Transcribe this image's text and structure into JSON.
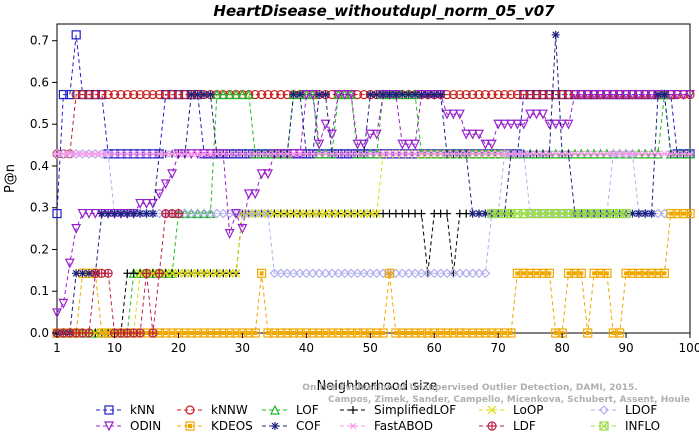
{
  "chart_data": {
    "type": "line",
    "title": "HeartDisease_withoutdupl_norm_05_v07",
    "xlabel": "Neighborhood size",
    "ylabel": "P@n",
    "xlim": [
      1,
      100
    ],
    "ylim": [
      0,
      0.74
    ],
    "x_ticks": [
      1,
      10,
      20,
      30,
      40,
      50,
      60,
      70,
      80,
      90,
      100
    ],
    "y_ticks": [
      0.0,
      0.1,
      0.2,
      0.3,
      0.4,
      0.5,
      0.6,
      0.7
    ],
    "legend_position": "bottom",
    "watermark": [
      "Campos, Zimek, Sander, Campello, Micenkova, Schubert, Assent, Houle",
      "On the Evaluation of Unsupervised Outlier Detection, DAMI, 2015."
    ],
    "series": [
      {
        "name": "kNN",
        "color": "#1f1fcc",
        "marker": "square",
        "points": [
          [
            1,
            0.286
          ],
          [
            2,
            0.571
          ],
          [
            3,
            0.571
          ],
          [
            4,
            0.714
          ],
          [
            5,
            0.571
          ],
          [
            6,
            0.571
          ],
          [
            7,
            0.571
          ],
          [
            8,
            0.571
          ],
          [
            9,
            0.429
          ],
          [
            15,
            0.429
          ],
          [
            16,
            0.429
          ],
          [
            17,
            0.429
          ],
          [
            18,
            0.571
          ],
          [
            19,
            0.571
          ],
          [
            22,
            0.571
          ],
          [
            24,
            0.429
          ],
          [
            60,
            0.429
          ],
          [
            70,
            0.429
          ],
          [
            72,
            0.429
          ],
          [
            74,
            0.571
          ],
          [
            90,
            0.571
          ],
          [
            96,
            0.571
          ],
          [
            98,
            0.429
          ],
          [
            100,
            0.429
          ]
        ]
      },
      {
        "name": "kNNW",
        "color": "#cc1f1f",
        "marker": "circle",
        "points": [
          [
            1,
            0.429
          ],
          [
            2,
            0.429
          ],
          [
            3,
            0.429
          ],
          [
            4,
            0.571
          ],
          [
            100,
            0.571
          ]
        ]
      },
      {
        "name": "LOF",
        "color": "#22bb22",
        "marker": "triangle-up",
        "points": [
          [
            1,
            0.0
          ],
          [
            10,
            0.0
          ],
          [
            12,
            0.0
          ],
          [
            13,
            0.143
          ],
          [
            19,
            0.143
          ],
          [
            20,
            0.286
          ],
          [
            25,
            0.286
          ],
          [
            26,
            0.571
          ],
          [
            30,
            0.571
          ],
          [
            32,
            0.429
          ],
          [
            38,
            0.571
          ],
          [
            42,
            0.429
          ],
          [
            45,
            0.571
          ],
          [
            48,
            0.429
          ],
          [
            52,
            0.571
          ],
          [
            58,
            0.429
          ],
          [
            72,
            0.429
          ],
          [
            95,
            0.429
          ],
          [
            96,
            0.571
          ],
          [
            97,
            0.429
          ],
          [
            100,
            0.429
          ]
        ]
      },
      {
        "name": "SimplifiedLOF",
        "color": "#000000",
        "marker": "plus",
        "points": [
          [
            1,
            0.0
          ],
          [
            9,
            0.0
          ],
          [
            10,
            0.0
          ],
          [
            12,
            0.143
          ],
          [
            16,
            0.143
          ],
          [
            18,
            0.143
          ],
          [
            28,
            0.143
          ],
          [
            30,
            0.286
          ],
          [
            58,
            0.286
          ],
          [
            59,
            0.143
          ],
          [
            60,
            0.286
          ],
          [
            62,
            0.286
          ],
          [
            63,
            0.143
          ],
          [
            64,
            0.286
          ],
          [
            70,
            0.286
          ],
          [
            72,
            0.286
          ]
        ]
      },
      {
        "name": "LoOP",
        "color": "#dddd00",
        "marker": "x",
        "points": [
          [
            1,
            0.0
          ],
          [
            10,
            0.0
          ],
          [
            12,
            0.0
          ],
          [
            14,
            0.143
          ],
          [
            20,
            0.143
          ],
          [
            29,
            0.143
          ],
          [
            30,
            0.286
          ],
          [
            40,
            0.286
          ],
          [
            50,
            0.286
          ],
          [
            52,
            0.429
          ],
          [
            60,
            0.429
          ],
          [
            70,
            0.429
          ],
          [
            72,
            0.429
          ]
        ]
      },
      {
        "name": "LDOF",
        "color": "#b0b0ee",
        "marker": "diamond",
        "points": [
          [
            1,
            0.429
          ],
          [
            4,
            0.429
          ],
          [
            6,
            0.429
          ],
          [
            8,
            0.429
          ],
          [
            10,
            0.286
          ],
          [
            20,
            0.286
          ],
          [
            30,
            0.286
          ],
          [
            35,
            0.143
          ],
          [
            45,
            0.143
          ],
          [
            55,
            0.143
          ],
          [
            65,
            0.143
          ],
          [
            68,
            0.143
          ],
          [
            69,
            0.286
          ],
          [
            71,
            0.429
          ],
          [
            75,
            0.286
          ],
          [
            85,
            0.286
          ],
          [
            88,
            0.429
          ],
          [
            92,
            0.286
          ],
          [
            96,
            0.286
          ]
        ]
      },
      {
        "name": "ODIN",
        "color": "#9922cc",
        "marker": "triangle-down",
        "points": [
          [
            1,
            0.048
          ],
          [
            2,
            0.071
          ],
          [
            3,
            0.167
          ],
          [
            4,
            0.25
          ],
          [
            5,
            0.286
          ],
          [
            10,
            0.286
          ],
          [
            13,
            0.286
          ],
          [
            14,
            0.31
          ],
          [
            16,
            0.31
          ],
          [
            17,
            0.333
          ],
          [
            18,
            0.357
          ],
          [
            19,
            0.381
          ],
          [
            20,
            0.429
          ],
          [
            25,
            0.429
          ],
          [
            28,
            0.238
          ],
          [
            29,
            0.286
          ],
          [
            30,
            0.25
          ],
          [
            31,
            0.333
          ],
          [
            33,
            0.381
          ],
          [
            35,
            0.429
          ],
          [
            38,
            0.429
          ],
          [
            40,
            0.571
          ],
          [
            42,
            0.452
          ],
          [
            43,
            0.5
          ],
          [
            44,
            0.476
          ],
          [
            45,
            0.571
          ],
          [
            48,
            0.452
          ],
          [
            50,
            0.476
          ],
          [
            52,
            0.571
          ],
          [
            55,
            0.452
          ],
          [
            58,
            0.571
          ],
          [
            62,
            0.524
          ],
          [
            65,
            0.476
          ],
          [
            68,
            0.452
          ],
          [
            70,
            0.5
          ],
          [
            72,
            0.5
          ],
          [
            75,
            0.524
          ],
          [
            78,
            0.5
          ],
          [
            80,
            0.5
          ],
          [
            82,
            0.571
          ],
          [
            90,
            0.571
          ],
          [
            95,
            0.571
          ],
          [
            100,
            0.571
          ]
        ]
      },
      {
        "name": "KDEOS",
        "color": "#f0a800",
        "marker": "square-filled",
        "points": [
          [
            1,
            0.0
          ],
          [
            4,
            0.0
          ],
          [
            5,
            0.143
          ],
          [
            7,
            0.143
          ],
          [
            8,
            0.0
          ],
          [
            30,
            0.0
          ],
          [
            31,
            0.0
          ],
          [
            33,
            0.143
          ],
          [
            34,
            0.0
          ],
          [
            50,
            0.0
          ],
          [
            52,
            0.0
          ],
          [
            53,
            0.143
          ],
          [
            54,
            0.0
          ],
          [
            72,
            0.0
          ],
          [
            73,
            0.143
          ],
          [
            78,
            0.143
          ],
          [
            79,
            0.0
          ],
          [
            81,
            0.143
          ],
          [
            83,
            0.143
          ],
          [
            84,
            0.0
          ],
          [
            85,
            0.143
          ],
          [
            87,
            0.143
          ],
          [
            88,
            0.0
          ],
          [
            90,
            0.143
          ],
          [
            96,
            0.143
          ],
          [
            97,
            0.286
          ],
          [
            100,
            0.286
          ]
        ]
      },
      {
        "name": "COF",
        "color": "#1a237e",
        "marker": "asterisk",
        "points": [
          [
            1,
            0.0
          ],
          [
            3,
            0.0
          ],
          [
            4,
            0.143
          ],
          [
            6,
            0.143
          ],
          [
            8,
            0.286
          ],
          [
            10,
            0.286
          ],
          [
            12,
            0.286
          ],
          [
            14,
            0.286
          ],
          [
            16,
            0.286
          ],
          [
            17,
            0.429
          ],
          [
            20,
            0.429
          ],
          [
            22,
            0.571
          ],
          [
            25,
            0.571
          ],
          [
            26,
            0.429
          ],
          [
            35,
            0.429
          ],
          [
            38,
            0.571
          ],
          [
            40,
            0.429
          ],
          [
            42,
            0.571
          ],
          [
            44,
            0.429
          ],
          [
            50,
            0.571
          ],
          [
            60,
            0.571
          ],
          [
            62,
            0.429
          ],
          [
            64,
            0.429
          ],
          [
            66,
            0.286
          ],
          [
            68,
            0.286
          ],
          [
            70,
            0.286
          ],
          [
            72,
            0.429
          ],
          [
            78,
            0.429
          ],
          [
            79,
            0.714
          ],
          [
            80,
            0.429
          ],
          [
            82,
            0.286
          ],
          [
            90,
            0.286
          ],
          [
            93,
            0.286
          ],
          [
            95,
            0.571
          ],
          [
            97,
            0.429
          ],
          [
            100,
            0.429
          ]
        ]
      },
      {
        "name": "FastABOD",
        "color": "#ff99ee",
        "marker": "star",
        "points": [
          [
            1,
            0.429
          ],
          [
            2,
            0.429
          ],
          [
            4,
            0.429
          ],
          [
            100,
            0.429
          ]
        ]
      },
      {
        "name": "LDF",
        "color": "#bb2244",
        "marker": "circle-plus",
        "points": [
          [
            1,
            0.0
          ],
          [
            6,
            0.0
          ],
          [
            7,
            0.143
          ],
          [
            9,
            0.143
          ],
          [
            10,
            0.0
          ],
          [
            14,
            0.0
          ],
          [
            15,
            0.143
          ],
          [
            16,
            0.0
          ],
          [
            17,
            0.143
          ],
          [
            18,
            0.286
          ],
          [
            20,
            0.286
          ]
        ]
      },
      {
        "name": "INFLO",
        "color": "#99dd44",
        "marker": "hash",
        "points": [
          [
            69,
            0.286
          ],
          [
            70,
            0.286
          ],
          [
            72,
            0.286
          ],
          [
            90,
            0.286
          ]
        ]
      }
    ]
  }
}
